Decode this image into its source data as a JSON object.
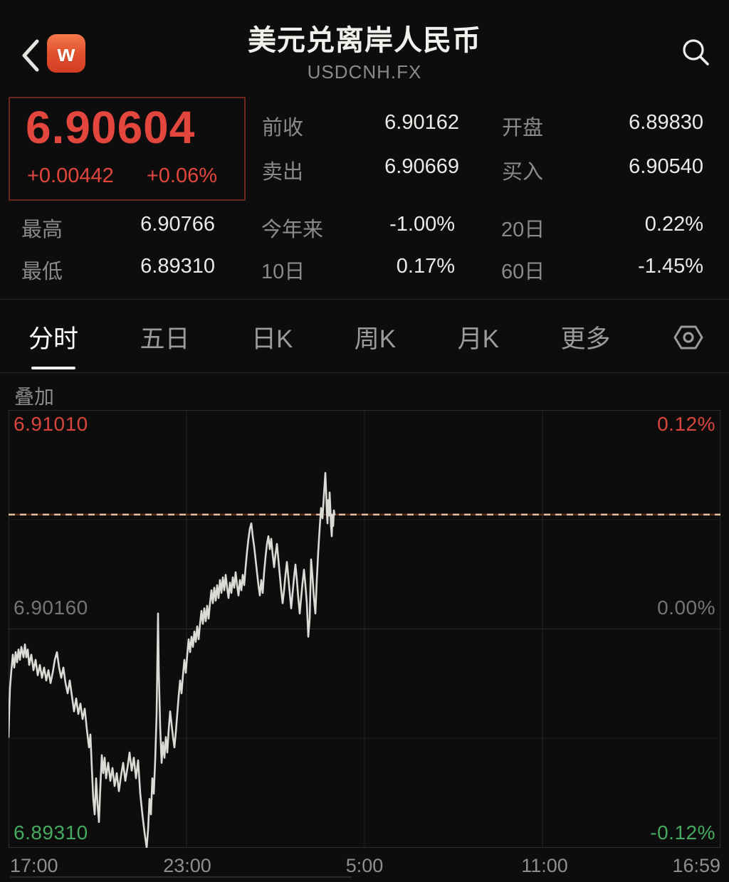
{
  "header": {
    "title": "美元兑离岸人民币",
    "subtitle": "USDCNH.FX",
    "logo_letter": "w"
  },
  "quote": {
    "last": "6.90604",
    "change": "+0.00442",
    "change_pct": "+0.06%",
    "fields": [
      {
        "label": "前收",
        "value": "6.90162"
      },
      {
        "label": "开盘",
        "value": "6.89830"
      },
      {
        "label": "卖出",
        "value": "6.90669"
      },
      {
        "label": "买入",
        "value": "6.90540"
      }
    ],
    "stats": [
      {
        "label": "最高",
        "value": "6.90766"
      },
      {
        "label": "今年来",
        "value": "-1.00%"
      },
      {
        "label": "20日",
        "value": "0.22%"
      },
      {
        "label": "最低",
        "value": "6.89310"
      },
      {
        "label": "10日",
        "value": "0.17%"
      },
      {
        "label": "60日",
        "value": "-1.45%"
      }
    ]
  },
  "tabs": [
    {
      "label": "分时",
      "active": true
    },
    {
      "label": "五日",
      "active": false
    },
    {
      "label": "日K",
      "active": false
    },
    {
      "label": "周K",
      "active": false
    },
    {
      "label": "月K",
      "active": false
    },
    {
      "label": "更多",
      "active": false
    }
  ],
  "overlay_label": "叠加",
  "chart_data": {
    "type": "line",
    "title": "USDCNH.FX 分时 (intraday)",
    "x_axis_labels": [
      "17:00",
      "23:00",
      "5:00",
      "11:00",
      "16:59"
    ],
    "y_left_labels": [
      {
        "text": "6.91010",
        "color": "#d8453d"
      },
      {
        "text": "6.90160",
        "color": "#777573"
      },
      {
        "text": "6.89310",
        "color": "#45a95f"
      }
    ],
    "y_right_labels": [
      {
        "text": "0.12%",
        "color": "#d8453d"
      },
      {
        "text": "0.00%",
        "color": "#777573"
      },
      {
        "text": "-0.12%",
        "color": "#45a95f"
      }
    ],
    "ylim": [
      6.8931,
      6.9101
    ],
    "prev_close": 6.90162,
    "last_price": 6.90604,
    "grid": {
      "vertical_x": [
        250,
        500,
        750
      ],
      "mid_fraction": 0.5,
      "quarter_fractions": [
        0.25,
        0.75
      ]
    },
    "series": [
      {
        "name": "price",
        "points": [
          [
            12,
            6.8974
          ],
          [
            13,
            6.8985
          ],
          [
            14,
            6.8993
          ],
          [
            16,
            6.9
          ],
          [
            18,
            6.9006
          ],
          [
            20,
            6.9001
          ],
          [
            22,
            6.9007
          ],
          [
            24,
            6.9003
          ],
          [
            26,
            6.9008
          ],
          [
            28,
            6.9004
          ],
          [
            30,
            6.9009
          ],
          [
            33,
            6.9005
          ],
          [
            35,
            6.901
          ],
          [
            37,
            6.9005
          ],
          [
            39,
            6.9008
          ],
          [
            41,
            6.9002
          ],
          [
            44,
            6.9006
          ],
          [
            47,
            6.9
          ],
          [
            50,
            6.9004
          ],
          [
            53,
            6.8998
          ],
          [
            56,
            6.9002
          ],
          [
            59,
            6.8997
          ],
          [
            62,
            6.9001
          ],
          [
            65,
            6.8996
          ],
          [
            68,
            6.9
          ],
          [
            71,
            6.8995
          ],
          [
            74,
            6.8999
          ],
          [
            77,
            6.9004
          ],
          [
            80,
            6.9007
          ],
          [
            83,
            6.9001
          ],
          [
            86,
            6.8997
          ],
          [
            89,
            6.9001
          ],
          [
            92,
            6.8995
          ],
          [
            95,
            6.8991
          ],
          [
            98,
            6.8996
          ],
          [
            101,
            6.899
          ],
          [
            104,
            6.8984
          ],
          [
            107,
            6.8989
          ],
          [
            110,
            6.8983
          ],
          [
            113,
            6.8987
          ],
          [
            116,
            6.8981
          ],
          [
            119,
            6.8985
          ],
          [
            122,
            6.8977
          ],
          [
            125,
            6.897
          ],
          [
            127,
            6.8975
          ],
          [
            129,
            6.8962
          ],
          [
            131,
            6.895
          ],
          [
            133,
            6.8944
          ],
          [
            135,
            6.8958
          ],
          [
            137,
            6.8948
          ],
          [
            139,
            6.8941
          ],
          [
            141,
            6.8955
          ],
          [
            143,
            6.8967
          ],
          [
            145,
            6.896
          ],
          [
            147,
            6.8966
          ],
          [
            149,
            6.8958
          ],
          [
            152,
            6.8964
          ],
          [
            155,
            6.8957
          ],
          [
            158,
            6.8962
          ],
          [
            161,
            6.8955
          ],
          [
            164,
            6.896
          ],
          [
            167,
            6.8953
          ],
          [
            170,
            6.8959
          ],
          [
            173,
            6.8964
          ],
          [
            176,
            6.8957
          ],
          [
            179,
            6.8962
          ],
          [
            182,
            6.8968
          ],
          [
            185,
            6.8961
          ],
          [
            188,
            6.8966
          ],
          [
            191,
            6.8958
          ],
          [
            194,
            6.8965
          ],
          [
            197,
            6.8952
          ],
          [
            200,
            6.8944
          ],
          [
            203,
            6.8937
          ],
          [
            206,
            6.8931
          ],
          [
            208,
            6.8938
          ],
          [
            210,
            6.895
          ],
          [
            212,
            6.8944
          ],
          [
            214,
            6.8958
          ],
          [
            216,
            6.8952
          ],
          [
            218,
            6.8965
          ],
          [
            220,
            6.8983
          ],
          [
            222,
            6.9022
          ],
          [
            223,
            6.9
          ],
          [
            225,
            6.8978
          ],
          [
            227,
            6.8964
          ],
          [
            229,
            6.8972
          ],
          [
            231,
            6.8966
          ],
          [
            233,
            6.8974
          ],
          [
            235,
            6.8968
          ],
          [
            237,
            6.8977
          ],
          [
            239,
            6.8984
          ],
          [
            241,
            6.8979
          ],
          [
            243,
            6.8974
          ],
          [
            245,
            6.897
          ],
          [
            247,
            6.8976
          ],
          [
            249,
            6.8983
          ],
          [
            251,
            6.899
          ],
          [
            253,
            6.8996
          ],
          [
            255,
            6.8991
          ],
          [
            257,
            6.8998
          ],
          [
            259,
            6.9004
          ],
          [
            261,
            6.8999
          ],
          [
            263,
            6.9006
          ],
          [
            265,
            6.9012
          ],
          [
            267,
            6.9007
          ],
          [
            269,
            6.9013
          ],
          [
            271,
            6.9009
          ],
          [
            273,
            6.9015
          ],
          [
            275,
            6.9011
          ],
          [
            277,
            6.9017
          ],
          [
            279,
            6.9012
          ],
          [
            281,
            6.9018
          ],
          [
            283,
            6.9023
          ],
          [
            285,
            6.9018
          ],
          [
            287,
            6.9024
          ],
          [
            289,
            6.9019
          ],
          [
            291,
            6.9025
          ],
          [
            293,
            6.902
          ],
          [
            295,
            6.9026
          ],
          [
            297,
            6.9031
          ],
          [
            299,
            6.9026
          ],
          [
            301,
            6.9032
          ],
          [
            303,
            6.9027
          ],
          [
            305,
            6.9033
          ],
          [
            307,
            6.9028
          ],
          [
            309,
            6.9035
          ],
          [
            311,
            6.903
          ],
          [
            313,
            6.9036
          ],
          [
            315,
            6.9031
          ],
          [
            317,
            6.9037
          ],
          [
            319,
            6.9032
          ],
          [
            321,
            6.9028
          ],
          [
            323,
            6.9034
          ],
          [
            325,
            6.903
          ],
          [
            327,
            6.9036
          ],
          [
            329,
            6.9032
          ],
          [
            331,
            6.9038
          ],
          [
            333,
            6.9033
          ],
          [
            335,
            6.9029
          ],
          [
            337,
            6.9035
          ],
          [
            339,
            6.9031
          ],
          [
            341,
            6.9037
          ],
          [
            343,
            6.9033
          ],
          [
            345,
            6.904
          ],
          [
            347,
            6.9046
          ],
          [
            349,
            6.9051
          ],
          [
            351,
            6.9055
          ],
          [
            353,
            6.9057
          ],
          [
            355,
            6.9052
          ],
          [
            357,
            6.9048
          ],
          [
            359,
            6.9043
          ],
          [
            361,
            6.9038
          ],
          [
            363,
            6.9033
          ],
          [
            365,
            6.9029
          ],
          [
            367,
            6.9035
          ],
          [
            369,
            6.903
          ],
          [
            371,
            6.9038
          ],
          [
            373,
            6.9044
          ],
          [
            375,
            6.9049
          ],
          [
            377,
            6.9052
          ],
          [
            379,
            6.9047
          ],
          [
            381,
            6.9051
          ],
          [
            383,
            6.9045
          ],
          [
            385,
            6.904
          ],
          [
            387,
            6.9045
          ],
          [
            389,
            6.9049
          ],
          [
            391,
            6.9043
          ],
          [
            393,
            6.9037
          ],
          [
            395,
            6.9031
          ],
          [
            397,
            6.9026
          ],
          [
            399,
            6.9031
          ],
          [
            401,
            6.9037
          ],
          [
            403,
            6.9042
          ],
          [
            405,
            6.9036
          ],
          [
            407,
            6.903
          ],
          [
            409,
            6.9024
          ],
          [
            411,
            6.903
          ],
          [
            413,
            6.9036
          ],
          [
            415,
            6.9041
          ],
          [
            417,
            6.9035
          ],
          [
            419,
            6.9028
          ],
          [
            421,
            6.9022
          ],
          [
            423,
            6.9028
          ],
          [
            425,
            6.9034
          ],
          [
            427,
            6.9039
          ],
          [
            429,
            6.9033
          ],
          [
            431,
            6.9026
          ],
          [
            433,
            6.9013
          ],
          [
            435,
            6.902
          ],
          [
            437,
            6.9043
          ],
          [
            439,
            6.9036
          ],
          [
            441,
            6.9028
          ],
          [
            443,
            6.9022
          ],
          [
            445,
            6.9035
          ],
          [
            447,
            6.9046
          ],
          [
            449,
            6.9055
          ],
          [
            451,
            6.9063
          ],
          [
            453,
            6.9059
          ],
          [
            455,
            6.9068
          ],
          [
            457,
            6.90766
          ],
          [
            458,
            6.907
          ],
          [
            459,
            6.9062
          ],
          [
            460,
            6.9057
          ],
          [
            461,
            6.9066
          ],
          [
            462,
            6.906
          ],
          [
            463,
            6.9069
          ],
          [
            464,
            6.9063
          ],
          [
            465,
            6.9056
          ],
          [
            466,
            6.9052
          ],
          [
            467,
            6.906
          ],
          [
            468,
            6.9056
          ],
          [
            469,
            6.9062
          ],
          [
            470,
            6.90604
          ]
        ]
      }
    ]
  },
  "colors": {
    "background": "#0d0d0d",
    "accent_red": "#e2463d",
    "green": "#45a95f",
    "gray_label": "#8a8a8a",
    "chart_line": "#dcdad5",
    "last_price_dash": "#dec39c",
    "grid": "#2c2c2c"
  }
}
